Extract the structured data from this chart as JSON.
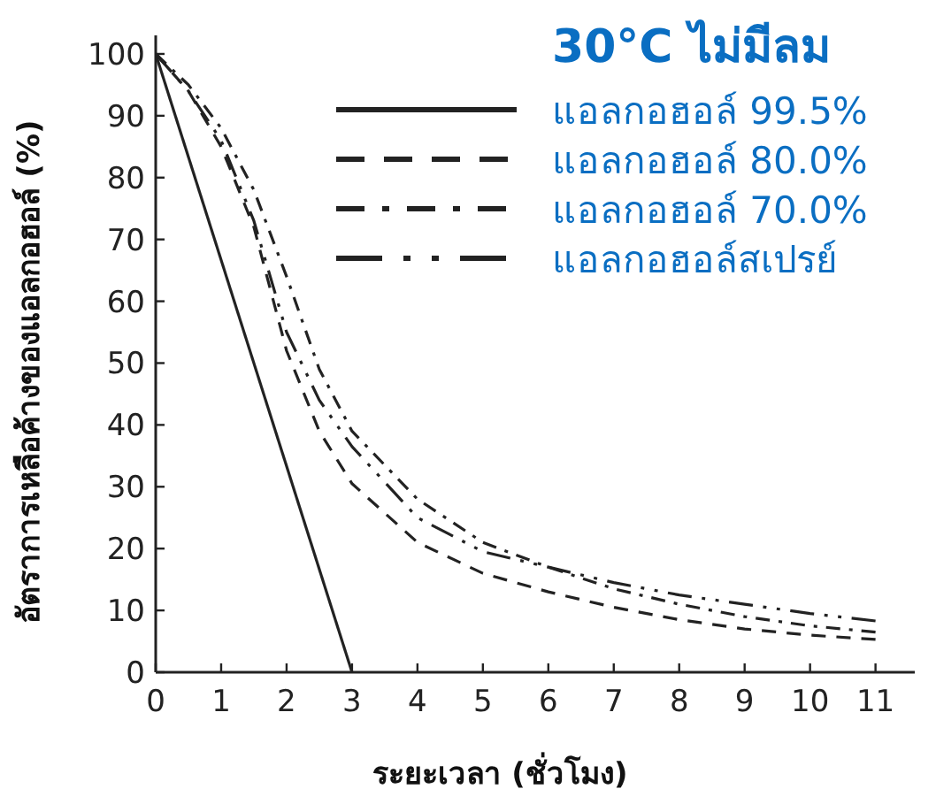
{
  "chart_data": {
    "type": "line",
    "xlabel": "ระยะเวลา (ชั่วโมง)",
    "ylabel": "อัตราการเหลือค้างของแอลกอฮอล์ (%)",
    "legend_title": "30°C ไม่มีลม",
    "legend": "top right",
    "grid": false,
    "marker": "none",
    "xlim": [
      0,
      11.6
    ],
    "ylim": [
      0,
      103
    ],
    "xticks": [
      0,
      1,
      2,
      3,
      4,
      5,
      6,
      7,
      8,
      9,
      10,
      11
    ],
    "yticks": [
      0,
      10,
      20,
      30,
      40,
      50,
      60,
      70,
      80,
      90,
      100
    ],
    "series": [
      {
        "name": "แอลกอฮอล์ 99.5%",
        "color": "#222222",
        "line_style": "solid",
        "x": [
          0,
          3
        ],
        "values": [
          100,
          0
        ]
      },
      {
        "name": "แอลกอฮอล์ 80.0%",
        "color": "#222222",
        "line_style": "dashed",
        "x": [
          0,
          0.5,
          1,
          1.5,
          2,
          2.5,
          3,
          4,
          5,
          6,
          7,
          8,
          9,
          10,
          11
        ],
        "values": [
          100,
          94,
          85,
          72,
          52,
          39,
          30.5,
          21,
          16,
          13,
          10.5,
          8.5,
          7,
          6,
          5.3
        ]
      },
      {
        "name": "แอลกอฮอล์ 70.0%",
        "color": "#222222",
        "line_style": "dashdot",
        "x": [
          0,
          0.5,
          1,
          1.5,
          2,
          2.5,
          3,
          4,
          5,
          6,
          7,
          8,
          9,
          10,
          11
        ],
        "values": [
          100,
          95,
          88,
          78,
          64,
          49,
          39,
          28,
          21,
          17,
          13.5,
          11,
          9,
          7.5,
          6.5
        ]
      },
      {
        "name": "แอลกอฮอล์สเปรย์",
        "color": "#222222",
        "line_style": "dashdotdot",
        "x": [
          0,
          0.5,
          1,
          1.5,
          2,
          2.5,
          3,
          4,
          5,
          6,
          7,
          8,
          9,
          10,
          11
        ],
        "values": [
          100,
          94,
          86,
          73,
          55,
          44,
          36.5,
          25,
          19.5,
          17,
          14.5,
          12.5,
          11,
          9.5,
          8.3
        ]
      }
    ]
  }
}
